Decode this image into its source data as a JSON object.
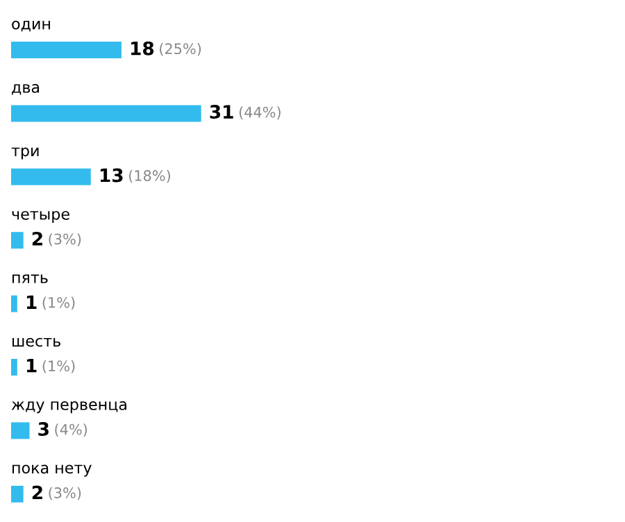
{
  "chart_data": {
    "type": "bar",
    "orientation": "horizontal",
    "categories": [
      "один",
      "два",
      "три",
      "четыре",
      "пять",
      "шесть",
      "жду первенца",
      "пока нету"
    ],
    "values": [
      18,
      31,
      13,
      2,
      1,
      1,
      3,
      2
    ],
    "value_labels": [
      "18 (25%)",
      "31 (44%)",
      "13 (18%)",
      "2 (3%)",
      "1 (1%)",
      "1 (1%)",
      "3 (4%)",
      "2 (3%)"
    ],
    "color": "#33bbee"
  }
}
